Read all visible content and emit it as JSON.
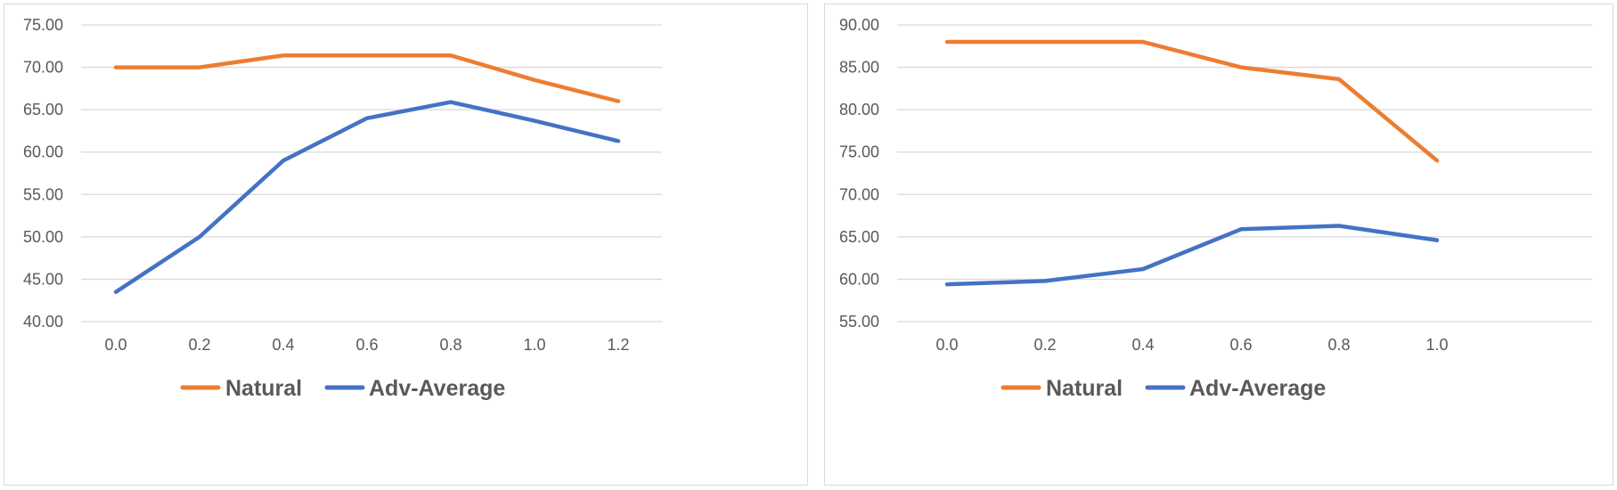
{
  "colors": {
    "natural": "#ed7d31",
    "adv_average": "#4472c4",
    "grid": "#d9d9d9",
    "text": "#595959",
    "border": "#d9d9d9"
  },
  "chart_data": [
    {
      "type": "line",
      "x": [
        "0.0",
        "0.2",
        "0.4",
        "0.6",
        "0.8",
        "1.0",
        "1.2"
      ],
      "ylim": [
        40,
        75
      ],
      "ytick_step": 5,
      "yticks": [
        "40.00",
        "45.00",
        "50.00",
        "55.00",
        "60.00",
        "65.00",
        "70.00",
        "75.00"
      ],
      "grid": true,
      "legend_position": "bottom",
      "series": [
        {
          "name": "Natural",
          "color": "#ed7d31",
          "values": [
            70.0,
            70.0,
            71.4,
            71.4,
            71.4,
            68.5,
            66.0
          ]
        },
        {
          "name": "Adv-Average",
          "color": "#4472c4",
          "values": [
            43.5,
            50.0,
            59.0,
            64.0,
            65.9,
            63.7,
            61.3
          ]
        }
      ]
    },
    {
      "type": "line",
      "x": [
        "0.0",
        "0.2",
        "0.4",
        "0.6",
        "0.8",
        "1.0"
      ],
      "ylim": [
        55,
        90
      ],
      "ytick_step": 5,
      "yticks": [
        "55.00",
        "60.00",
        "65.00",
        "70.00",
        "75.00",
        "80.00",
        "85.00",
        "90.00"
      ],
      "grid": true,
      "legend_position": "bottom",
      "series": [
        {
          "name": "Natural",
          "color": "#ed7d31",
          "values": [
            88.0,
            88.0,
            88.0,
            85.0,
            83.6,
            74.0
          ]
        },
        {
          "name": "Adv-Average",
          "color": "#4472c4",
          "values": [
            59.4,
            59.8,
            61.2,
            65.9,
            66.3,
            64.6
          ]
        }
      ]
    }
  ]
}
